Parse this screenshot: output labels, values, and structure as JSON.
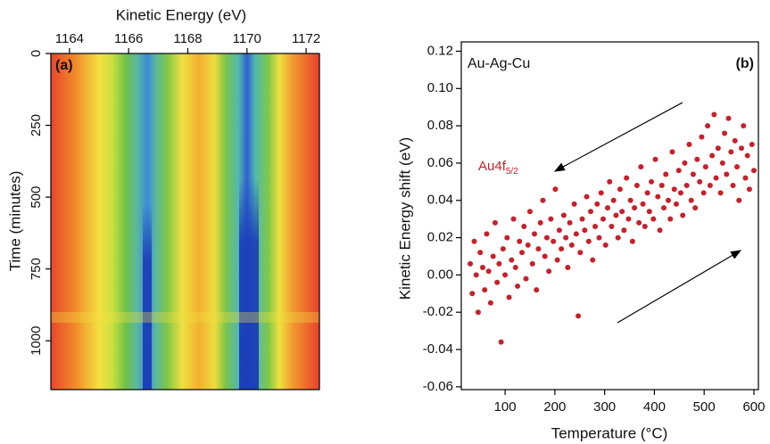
{
  "chart_data": [
    {
      "type": "heatmap",
      "panel_label": "(a)",
      "xlabel": "Kinetic Energy (eV)",
      "ylabel": "Time (minutes)",
      "xlim": [
        1163.37,
        1172.45
      ],
      "xticks": [
        1164,
        1166,
        1168,
        1170,
        1172
      ],
      "ylim": [
        0,
        1170
      ],
      "yticks": [
        0,
        250,
        500,
        750,
        1000
      ],
      "y_inverted": true
    },
    {
      "type": "scatter",
      "title": "Au-Ag-Cu",
      "panel_label": "(b)",
      "series_label": "Au4f",
      "series_label_sub": "5/2",
      "xlabel": "Temperature (°C)",
      "ylabel": "Kinetic Energy shift (eV)",
      "color": "#c8202a",
      "xlim": [
        12,
        609
      ],
      "xticks": [
        100,
        200,
        300,
        400,
        500,
        600
      ],
      "ylim": [
        -0.0615,
        0.125
      ],
      "yticks": [
        -0.06,
        -0.04,
        -0.02,
        {
          "value": 0,
          "label": "0.00"
        },
        0.02,
        0.04,
        0.06,
        0.08,
        {
          "value": 0.1,
          "label": "0.10"
        },
        0.12
      ],
      "x": [
        30,
        34,
        38,
        42,
        46,
        50,
        55,
        59,
        63,
        67,
        71,
        76,
        80,
        84,
        88,
        92,
        96,
        100,
        104,
        108,
        113,
        117,
        121,
        125,
        129,
        134,
        138,
        142,
        146,
        150,
        155,
        159,
        163,
        167,
        171,
        176,
        180,
        184,
        188,
        192,
        197,
        201,
        205,
        209,
        213,
        218,
        222,
        226,
        230,
        234,
        239,
        243,
        247,
        251,
        255,
        260,
        264,
        268,
        272,
        276,
        281,
        285,
        289,
        293,
        297,
        302,
        306,
        310,
        314,
        318,
        323,
        327,
        331,
        335,
        339,
        344,
        348,
        352,
        356,
        360,
        365,
        369,
        373,
        377,
        381,
        386,
        390,
        394,
        398,
        402,
        407,
        411,
        415,
        419,
        423,
        428,
        432,
        436,
        440,
        444,
        449,
        453,
        457,
        461,
        465,
        470,
        474,
        478,
        482,
        486,
        491,
        495,
        499,
        503,
        507,
        512,
        516,
        520,
        524,
        528,
        533,
        537,
        541,
        545,
        549,
        554,
        558,
        562,
        566,
        570,
        575,
        579,
        583,
        587,
        591,
        596,
        600
      ],
      "values": [
        0.006,
        -0.01,
        0.018,
        0,
        -0.02,
        0.012,
        0.004,
        -0.008,
        0.022,
        0.002,
        -0.015,
        0.01,
        0.028,
        -0.004,
        0.006,
        -0.036,
        0.014,
        0,
        0.02,
        -0.012,
        0.008,
        0.03,
        0.004,
        -0.006,
        0.018,
        0.012,
        0.026,
        -0.002,
        0.016,
        0.034,
        0.006,
        0.022,
        -0.008,
        0.014,
        0.028,
        0.04,
        0.01,
        0.02,
        0.002,
        0.03,
        0.018,
        0.046,
        0.008,
        0.024,
        0.014,
        0.032,
        0.02,
        0.004,
        0.028,
        0.016,
        0.038,
        0.022,
        -0.022,
        0.012,
        0.03,
        0.024,
        0.042,
        0.018,
        0.034,
        0.008,
        0.026,
        0.038,
        0.02,
        0.044,
        0.03,
        0.016,
        0.036,
        0.05,
        0.026,
        0.04,
        0.032,
        0.02,
        0.046,
        0.034,
        0.024,
        0.052,
        0.03,
        0.04,
        0.018,
        0.036,
        0.048,
        0.028,
        0.058,
        0.038,
        0.026,
        0.044,
        0.034,
        0.05,
        0.03,
        0.062,
        0.042,
        0.024,
        0.048,
        0.036,
        0.054,
        0.04,
        0.03,
        0.066,
        0.046,
        0.038,
        0.056,
        0.044,
        0.032,
        0.06,
        0.048,
        0.07,
        0.04,
        0.054,
        0.036,
        0.062,
        0.05,
        0.074,
        0.044,
        0.058,
        0.08,
        0.048,
        0.064,
        0.086,
        0.052,
        0.068,
        0.044,
        0.06,
        0.076,
        0.054,
        0.084,
        0.066,
        0.048,
        0.072,
        0.058,
        0.04,
        0.068,
        0.08,
        0.052,
        0.064,
        0.046,
        0.07,
        0.056
      ]
    }
  ]
}
